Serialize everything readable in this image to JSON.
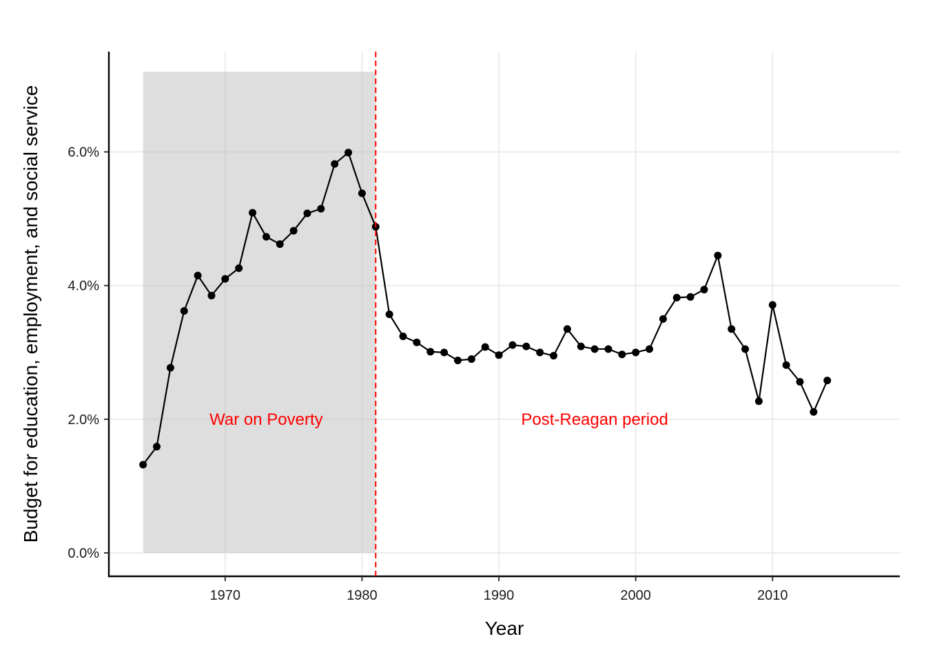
{
  "chart_data": {
    "type": "line",
    "xlabel": "Year",
    "ylabel": "Budget for education, employment, and social service",
    "x_ticks": [
      1970,
      1980,
      1990,
      2000,
      2010
    ],
    "y_ticks": [
      0,
      2,
      4,
      6
    ],
    "y_tick_labels": [
      "0.0%",
      "2.0%",
      "4.0%",
      "6.0%"
    ],
    "xlim": [
      1961.5,
      2019.3
    ],
    "ylim": [
      -0.35,
      7.5
    ],
    "grid": true,
    "series": [
      {
        "x": [
          1964,
          1965,
          1966,
          1967,
          1968,
          1969,
          1970,
          1971,
          1972,
          1973,
          1974,
          1975,
          1976,
          1977,
          1978,
          1979,
          1980,
          1981,
          1982,
          1983,
          1984,
          1985,
          1986,
          1987,
          1988,
          1989,
          1990,
          1991,
          1992,
          1993,
          1994,
          1995,
          1996,
          1997,
          1998,
          1999,
          2000,
          2001,
          2002,
          2003,
          2004,
          2005,
          2006,
          2007,
          2008,
          2009,
          2010,
          2011,
          2012,
          2013,
          2014
        ],
        "values": [
          1.32,
          1.59,
          2.77,
          3.62,
          4.15,
          3.85,
          4.1,
          4.26,
          5.09,
          4.73,
          4.62,
          4.82,
          5.08,
          5.15,
          5.82,
          5.99,
          5.38,
          4.88,
          3.57,
          3.24,
          3.15,
          3.01,
          3.0,
          2.88,
          2.9,
          3.08,
          2.96,
          3.11,
          3.09,
          3.0,
          2.95,
          3.35,
          3.09,
          3.05,
          3.05,
          2.97,
          3.0,
          3.05,
          3.5,
          3.82,
          3.83,
          3.94,
          4.45,
          3.35,
          3.05,
          2.27,
          3.71,
          2.81,
          2.56,
          2.11,
          2.58
        ],
        "color": "#000000"
      }
    ],
    "shaded_region": {
      "x_start": 1964,
      "x_end": 1981,
      "y_min": 0,
      "y_max": 7.2,
      "color": "#dedede"
    },
    "vline": {
      "x": 1981,
      "color": "#ff0000",
      "style": "dashed"
    },
    "annotations": [
      {
        "text": "War on Poverty",
        "x": 1973,
        "y": 2.0,
        "color": "#ff0000"
      },
      {
        "text": "Post-Reagan period",
        "x": 1997,
        "y": 2.0,
        "color": "#ff0000"
      }
    ]
  }
}
